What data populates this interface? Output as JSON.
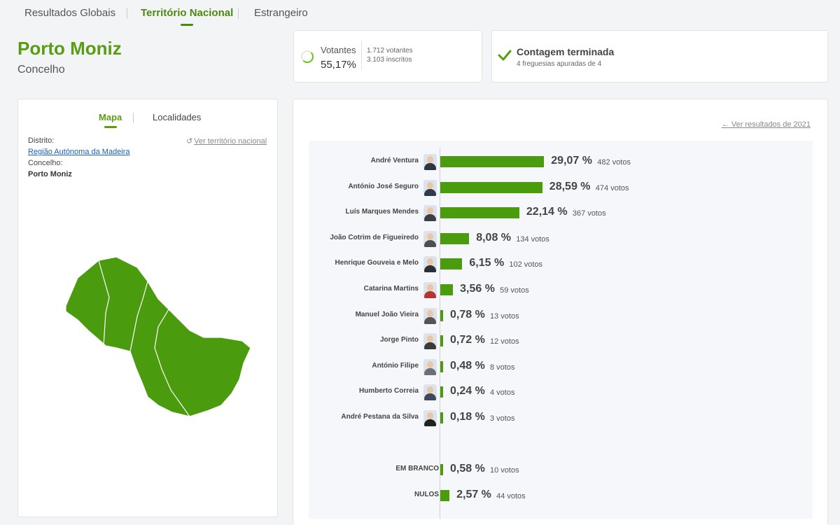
{
  "nav": {
    "tabs": [
      {
        "label": "Resultados Globais",
        "active": false
      },
      {
        "label": "Território Nacional",
        "active": true
      },
      {
        "label": "Estrangeiro",
        "active": false
      }
    ]
  },
  "header": {
    "title": "Porto Moniz",
    "subtitle": "Concelho"
  },
  "turnout": {
    "label": "Votantes",
    "percent": "55,17%",
    "voters": "1.712 votantes",
    "registered": "3.103 inscritos"
  },
  "count": {
    "title": "Contagem terminada",
    "detail": "4 freguesias apuradas de 4"
  },
  "map_panel": {
    "tabs": [
      {
        "label": "Mapa",
        "active": true
      },
      {
        "label": "Localidades",
        "active": false
      }
    ],
    "district_label": "Distrito:",
    "district_value": "Região Autónoma da Madeira",
    "municipality_label": "Concelho:",
    "municipality_value": "Porto Moniz",
    "national_link": "Ver território nacional"
  },
  "results": {
    "previous_link": "Ver resultados de 2021",
    "candidates": [
      {
        "name": "André Ventura",
        "percent": 29.07,
        "percent_label": "29,07 %",
        "votes": "482 votos"
      },
      {
        "name": "António José Seguro",
        "percent": 28.59,
        "percent_label": "28,59 %",
        "votes": "474 votos"
      },
      {
        "name": "Luís Marques Mendes",
        "percent": 22.14,
        "percent_label": "22,14 %",
        "votes": "367 votos"
      },
      {
        "name": "João Cotrim de Figueiredo",
        "percent": 8.08,
        "percent_label": "8,08 %",
        "votes": "134 votos"
      },
      {
        "name": "Henrique Gouveia e Melo",
        "percent": 6.15,
        "percent_label": "6,15 %",
        "votes": "102 votos"
      },
      {
        "name": "Catarina Martins",
        "percent": 3.56,
        "percent_label": "3,56 %",
        "votes": "59 votos"
      },
      {
        "name": "Manuel João Vieira",
        "percent": 0.78,
        "percent_label": "0,78 %",
        "votes": "13 votos"
      },
      {
        "name": "Jorge Pinto",
        "percent": 0.72,
        "percent_label": "0,72 %",
        "votes": "12 votos"
      },
      {
        "name": "António Filipe",
        "percent": 0.48,
        "percent_label": "0,48 %",
        "votes": "8 votos"
      },
      {
        "name": "Humberto Correia",
        "percent": 0.24,
        "percent_label": "0,24 %",
        "votes": "4 votos"
      },
      {
        "name": "André Pestana da Silva",
        "percent": 0.18,
        "percent_label": "0,18 %",
        "votes": "3 votos"
      }
    ],
    "others": [
      {
        "name": "EM BRANCO",
        "percent": 0.58,
        "percent_label": "0,58 %",
        "votes": "10 votos"
      },
      {
        "name": "NULOS",
        "percent": 2.57,
        "percent_label": "2,57 %",
        "votes": "44 votos"
      }
    ]
  },
  "colors": {
    "accent": "#5a9c14",
    "bar": "#4a9c0e",
    "link": "#1a5fb4"
  },
  "icons": {
    "turnout": "progress-ring-icon",
    "count": "check-icon",
    "national": "reset-icon",
    "previous": "arrow-left-icon"
  }
}
